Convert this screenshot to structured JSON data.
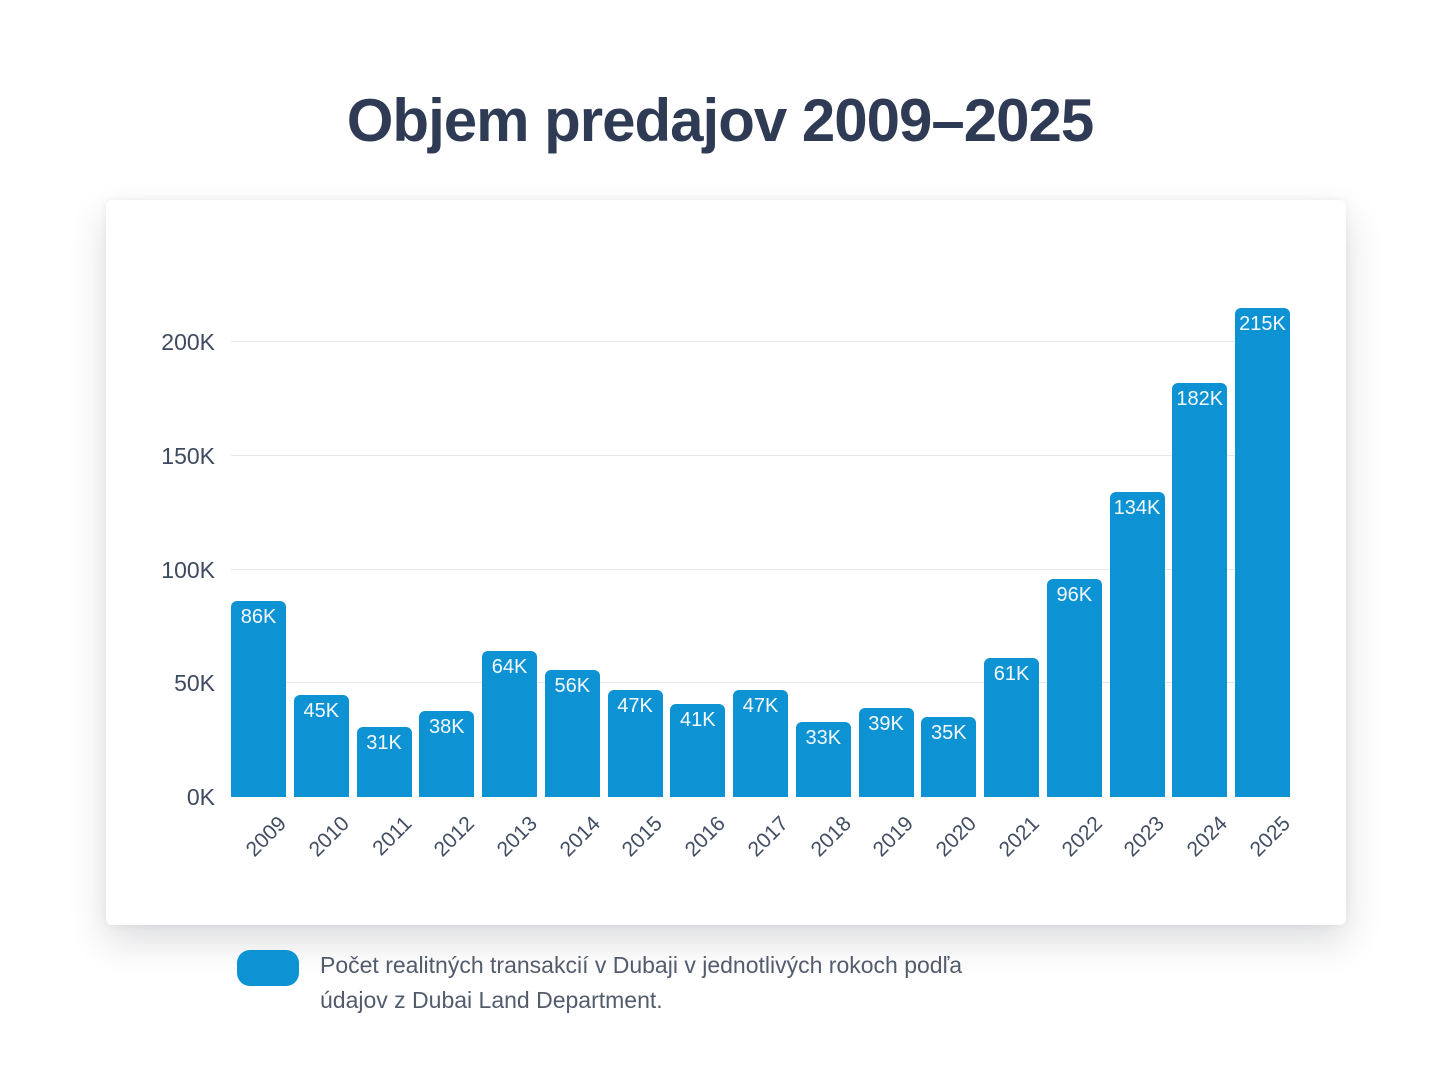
{
  "page": {
    "title": "Objem predajov 2009–2025"
  },
  "colors": {
    "bar": "#0d93d3",
    "title_text": "#2f3b54",
    "axis_text": "#414d63",
    "legend_text": "#525c6d",
    "gridline": "#e3e6ea",
    "bar_label_text": "#ffffff",
    "card_background": "#ffffff",
    "page_background": "#ffffff"
  },
  "chart_data": {
    "type": "bar",
    "title": "Objem predajov 2009–2025",
    "categories": [
      "2009",
      "2010",
      "2011",
      "2012",
      "2013",
      "2014",
      "2015",
      "2016",
      "2017",
      "2018",
      "2019",
      "2020",
      "2021",
      "2022",
      "2023",
      "2024",
      "2025"
    ],
    "values": [
      86,
      45,
      31,
      38,
      64,
      56,
      47,
      41,
      47,
      33,
      39,
      35,
      61,
      96,
      134,
      182,
      215
    ],
    "value_unit": "K",
    "value_labels": [
      "86K",
      "45K",
      "31K",
      "38K",
      "64K",
      "56K",
      "47K",
      "41K",
      "47K",
      "33K",
      "39K",
      "35K",
      "61K",
      "96K",
      "134K",
      "182K",
      "215K"
    ],
    "y_ticks": [
      {
        "value": 0,
        "label": "0K"
      },
      {
        "value": 50,
        "label": "50K"
      },
      {
        "value": 100,
        "label": "100K"
      },
      {
        "value": 150,
        "label": "150K"
      },
      {
        "value": 200,
        "label": "200K"
      }
    ],
    "ylim": [
      0,
      220
    ],
    "xlabel": "",
    "ylabel": "",
    "grid": "horizontal",
    "legend_position": "bottom",
    "x_label_rotation_deg": -45
  },
  "legend": {
    "lines": [
      "Počet realitných transakcií v Dubaji v jednotlivých rokoch podľa",
      "údajov z Dubai Land Department."
    ]
  }
}
